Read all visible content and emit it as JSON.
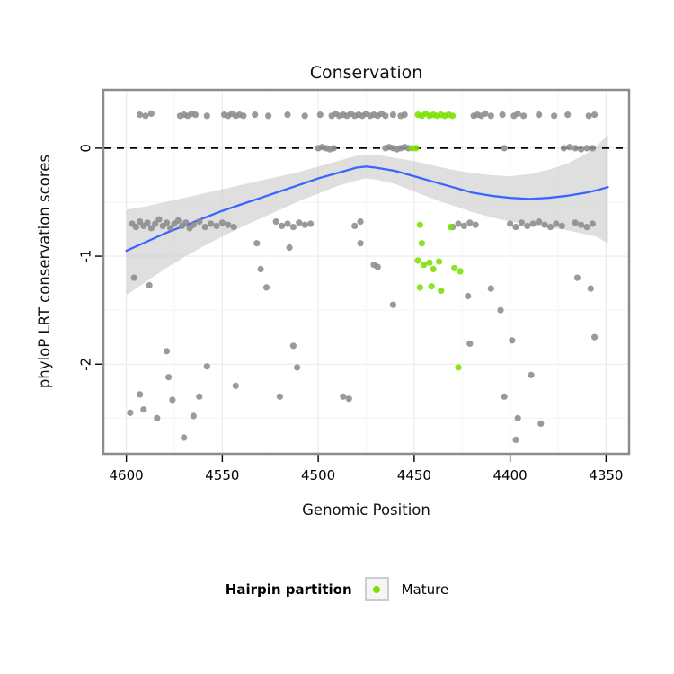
{
  "chart_data": {
    "type": "scatter",
    "title": "Conservation",
    "xlabel": "Genomic Position",
    "ylabel": "phyloP LRT conservation scores",
    "x_ticks": [
      4600,
      4550,
      4500,
      4450,
      4400,
      4350
    ],
    "y_ticks": [
      0,
      -1,
      -2
    ],
    "x_minor_ticks": [
      4575,
      4525,
      4475,
      4425,
      4375
    ],
    "y_minor_ticks": [
      -0.5,
      -1.5,
      -2.5
    ],
    "xlim": [
      4612,
      4338
    ],
    "ylim": [
      0.54,
      -2.83
    ],
    "x_axis_reversed": true,
    "reference_line_y": 0,
    "colors": {
      "point_gray": "#8C8C8C",
      "point_green": "#7CDF00",
      "smooth_line": "#3A66FF",
      "ribbon": "#C4C4C4",
      "panel_border": "#8C8C8C",
      "grid_major": "#EBEBEB",
      "grid_minor": "#F5F5F5",
      "reference_line": "#000000"
    },
    "series": [
      {
        "name": "",
        "color": "#8C8C8C",
        "points": [
          [
            4593,
            0.31
          ],
          [
            4590,
            0.3
          ],
          [
            4587,
            0.32
          ],
          [
            4572,
            0.3
          ],
          [
            4570,
            0.31
          ],
          [
            4568,
            0.3
          ],
          [
            4566,
            0.32
          ],
          [
            4564,
            0.31
          ],
          [
            4558,
            0.3
          ],
          [
            4549,
            0.31
          ],
          [
            4547,
            0.3
          ],
          [
            4545,
            0.32
          ],
          [
            4543,
            0.3
          ],
          [
            4541,
            0.31
          ],
          [
            4539,
            0.3
          ],
          [
            4533,
            0.31
          ],
          [
            4526,
            0.3
          ],
          [
            4516,
            0.31
          ],
          [
            4507,
            0.3
          ],
          [
            4499,
            0.31
          ],
          [
            4493,
            0.3
          ],
          [
            4491,
            0.32
          ],
          [
            4489,
            0.3
          ],
          [
            4487,
            0.31
          ],
          [
            4485,
            0.3
          ],
          [
            4483,
            0.32
          ],
          [
            4481,
            0.3
          ],
          [
            4479,
            0.31
          ],
          [
            4477,
            0.3
          ],
          [
            4475,
            0.32
          ],
          [
            4473,
            0.3
          ],
          [
            4471,
            0.31
          ],
          [
            4469,
            0.3
          ],
          [
            4467,
            0.32
          ],
          [
            4465,
            0.3
          ],
          [
            4461,
            0.31
          ],
          [
            4457,
            0.3
          ],
          [
            4455,
            0.31
          ],
          [
            4419,
            0.3
          ],
          [
            4417,
            0.31
          ],
          [
            4415,
            0.3
          ],
          [
            4413,
            0.32
          ],
          [
            4410,
            0.3
          ],
          [
            4404,
            0.31
          ],
          [
            4398,
            0.3
          ],
          [
            4396,
            0.32
          ],
          [
            4393,
            0.3
          ],
          [
            4385,
            0.31
          ],
          [
            4377,
            0.3
          ],
          [
            4370,
            0.31
          ],
          [
            4359,
            0.3
          ],
          [
            4356,
            0.31
          ],
          [
            4500,
            0
          ],
          [
            4498,
            0.01
          ],
          [
            4496,
            0
          ],
          [
            4494,
            -0.01
          ],
          [
            4492,
            0
          ],
          [
            4465,
            0
          ],
          [
            4463,
            0.01
          ],
          [
            4461,
            0
          ],
          [
            4459,
            -0.01
          ],
          [
            4457,
            0
          ],
          [
            4455,
            0.01
          ],
          [
            4453,
            0
          ],
          [
            4403,
            0
          ],
          [
            4372,
            0
          ],
          [
            4369,
            0.01
          ],
          [
            4366,
            0
          ],
          [
            4363,
            -0.01
          ],
          [
            4360,
            0
          ],
          [
            4357,
            0
          ],
          [
            4597,
            -0.7
          ],
          [
            4595,
            -0.73
          ],
          [
            4593,
            -0.68
          ],
          [
            4591,
            -0.72
          ],
          [
            4589,
            -0.69
          ],
          [
            4587,
            -0.74
          ],
          [
            4585,
            -0.7
          ],
          [
            4583,
            -0.66
          ],
          [
            4581,
            -0.72
          ],
          [
            4579,
            -0.69
          ],
          [
            4577,
            -0.74
          ],
          [
            4575,
            -0.7
          ],
          [
            4573,
            -0.67
          ],
          [
            4571,
            -0.72
          ],
          [
            4569,
            -0.69
          ],
          [
            4567,
            -0.74
          ],
          [
            4565,
            -0.71
          ],
          [
            4562,
            -0.68
          ],
          [
            4559,
            -0.73
          ],
          [
            4556,
            -0.7
          ],
          [
            4553,
            -0.72
          ],
          [
            4550,
            -0.69
          ],
          [
            4547,
            -0.71
          ],
          [
            4544,
            -0.73
          ],
          [
            4522,
            -0.68
          ],
          [
            4519,
            -0.72
          ],
          [
            4516,
            -0.7
          ],
          [
            4513,
            -0.73
          ],
          [
            4510,
            -0.69
          ],
          [
            4507,
            -0.71
          ],
          [
            4504,
            -0.7
          ],
          [
            4481,
            -0.72
          ],
          [
            4478,
            -0.68
          ],
          [
            4430,
            -0.73
          ],
          [
            4427,
            -0.7
          ],
          [
            4424,
            -0.72
          ],
          [
            4421,
            -0.69
          ],
          [
            4418,
            -0.71
          ],
          [
            4400,
            -0.7
          ],
          [
            4397,
            -0.73
          ],
          [
            4394,
            -0.69
          ],
          [
            4391,
            -0.72
          ],
          [
            4388,
            -0.7
          ],
          [
            4385,
            -0.68
          ],
          [
            4382,
            -0.71
          ],
          [
            4379,
            -0.73
          ],
          [
            4376,
            -0.7
          ],
          [
            4373,
            -0.72
          ],
          [
            4366,
            -0.69
          ],
          [
            4363,
            -0.71
          ],
          [
            4360,
            -0.73
          ],
          [
            4357,
            -0.7
          ],
          [
            4598,
            -2.45
          ],
          [
            4596,
            -1.2
          ],
          [
            4593,
            -2.28
          ],
          [
            4591,
            -2.42
          ],
          [
            4588,
            -1.27
          ],
          [
            4584,
            -2.5
          ],
          [
            4579,
            -1.88
          ],
          [
            4578,
            -2.12
          ],
          [
            4576,
            -2.33
          ],
          [
            4570,
            -2.68
          ],
          [
            4565,
            -2.48
          ],
          [
            4562,
            -2.3
          ],
          [
            4558,
            -2.02
          ],
          [
            4543,
            -2.2
          ],
          [
            4532,
            -0.88
          ],
          [
            4530,
            -1.12
          ],
          [
            4527,
            -1.29
          ],
          [
            4520,
            -2.3
          ],
          [
            4515,
            -0.92
          ],
          [
            4513,
            -1.83
          ],
          [
            4511,
            -2.03
          ],
          [
            4487,
            -2.3
          ],
          [
            4484,
            -2.32
          ],
          [
            4478,
            -0.88
          ],
          [
            4471,
            -1.08
          ],
          [
            4469,
            -1.1
          ],
          [
            4461,
            -1.45
          ],
          [
            4422,
            -1.37
          ],
          [
            4421,
            -1.81
          ],
          [
            4410,
            -1.3
          ],
          [
            4405,
            -1.5
          ],
          [
            4403,
            -2.3
          ],
          [
            4399,
            -1.78
          ],
          [
            4397,
            -2.7
          ],
          [
            4396,
            -2.5
          ],
          [
            4389,
            -2.1
          ],
          [
            4384,
            -2.55
          ],
          [
            4365,
            -1.2
          ],
          [
            4358,
            -1.3
          ],
          [
            4356,
            -1.75
          ]
        ]
      },
      {
        "name": "Mature",
        "color": "#7CDF00",
        "points": [
          [
            4448,
            0.31
          ],
          [
            4446,
            0.3
          ],
          [
            4444,
            0.32
          ],
          [
            4442,
            0.3
          ],
          [
            4440,
            0.31
          ],
          [
            4438,
            0.3
          ],
          [
            4436,
            0.31
          ],
          [
            4434,
            0.3
          ],
          [
            4432,
            0.31
          ],
          [
            4430,
            0.3
          ],
          [
            4451,
            0
          ],
          [
            4449,
            0
          ],
          [
            4447,
            -0.71
          ],
          [
            4431,
            -0.73
          ],
          [
            4446,
            -0.88
          ],
          [
            4448,
            -1.04
          ],
          [
            4445,
            -1.08
          ],
          [
            4442,
            -1.06
          ],
          [
            4440,
            -1.12
          ],
          [
            4437,
            -1.05
          ],
          [
            4429,
            -1.11
          ],
          [
            4426,
            -1.14
          ],
          [
            4447,
            -1.29
          ],
          [
            4441,
            -1.28
          ],
          [
            4436,
            -1.32
          ],
          [
            4427,
            -2.03
          ]
        ]
      }
    ],
    "smooth": {
      "color": "#3A66FF",
      "ribbon_color": "#C4C4C4",
      "points": [
        [
          4600,
          -0.95,
          -1.36,
          -0.57
        ],
        [
          4590,
          -0.87,
          -1.24,
          -0.54
        ],
        [
          4580,
          -0.79,
          -1.12,
          -0.5
        ],
        [
          4570,
          -0.72,
          -1.01,
          -0.46
        ],
        [
          4560,
          -0.65,
          -0.91,
          -0.42
        ],
        [
          4550,
          -0.58,
          -0.82,
          -0.38
        ],
        [
          4540,
          -0.52,
          -0.73,
          -0.34
        ],
        [
          4530,
          -0.46,
          -0.65,
          -0.3
        ],
        [
          4520,
          -0.4,
          -0.57,
          -0.26
        ],
        [
          4510,
          -0.34,
          -0.49,
          -0.22
        ],
        [
          4500,
          -0.28,
          -0.42,
          -0.17
        ],
        [
          4490,
          -0.23,
          -0.35,
          -0.12
        ],
        [
          4480,
          -0.18,
          -0.3,
          -0.07
        ],
        [
          4475,
          -0.17,
          -0.28,
          -0.06
        ],
        [
          4470,
          -0.18,
          -0.29,
          -0.06
        ],
        [
          4460,
          -0.21,
          -0.33,
          -0.09
        ],
        [
          4450,
          -0.26,
          -0.4,
          -0.12
        ],
        [
          4440,
          -0.31,
          -0.47,
          -0.16
        ],
        [
          4430,
          -0.36,
          -0.53,
          -0.2
        ],
        [
          4420,
          -0.41,
          -0.59,
          -0.23
        ],
        [
          4410,
          -0.44,
          -0.64,
          -0.25
        ],
        [
          4400,
          -0.46,
          -0.68,
          -0.26
        ],
        [
          4390,
          -0.47,
          -0.71,
          -0.24
        ],
        [
          4380,
          -0.46,
          -0.73,
          -0.2
        ],
        [
          4370,
          -0.44,
          -0.76,
          -0.14
        ],
        [
          4360,
          -0.41,
          -0.8,
          -0.05
        ],
        [
          4355,
          -0.39,
          -0.82,
          0.02
        ],
        [
          4349,
          -0.36,
          -0.88,
          0.12
        ]
      ]
    },
    "legend": {
      "title": "Hairpin partition",
      "items": [
        {
          "label": "Mature",
          "color": "#7CDF00"
        }
      ]
    }
  }
}
